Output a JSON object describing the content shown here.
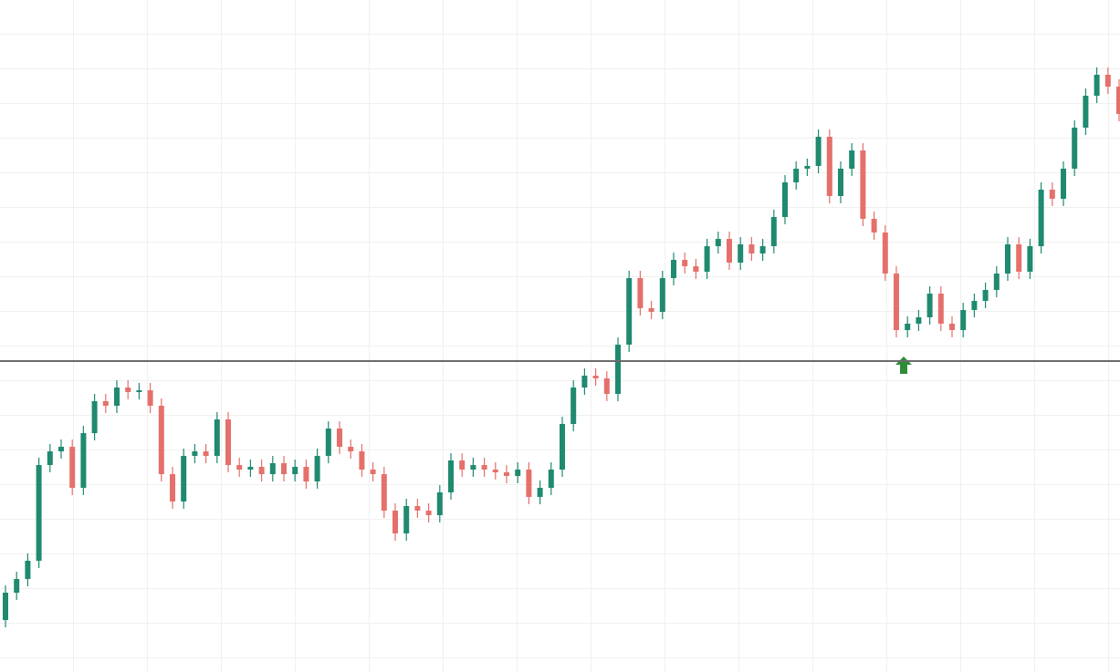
{
  "chart_data": {
    "type": "candlestick",
    "ylim": [
      0,
      737
    ],
    "up_color": "#1f8a70",
    "down_color": "#e5706b",
    "level": 341,
    "level_color": "#6b6b6b",
    "open": [
      57,
      87,
      102,
      122,
      227,
      242,
      247,
      202,
      262,
      297,
      292,
      312,
      307,
      309,
      292,
      217,
      187,
      237,
      242,
      237,
      277,
      227,
      222,
      225,
      217,
      229,
      217,
      225,
      209,
      237,
      267,
      247,
      242,
      222,
      217,
      177,
      152,
      182,
      177,
      172,
      197,
      232,
      222,
      227,
      222,
      219,
      215,
      222,
      192,
      202,
      222,
      272,
      312,
      325,
      322,
      305,
      359,
      432,
      399,
      395,
      432,
      452,
      445,
      439,
      467,
      475,
      449,
      469,
      459,
      467,
      499,
      537,
      552,
      555,
      587,
      522,
      552,
      572,
      497,
      482,
      437,
      375,
      382,
      389,
      415,
      382,
      375,
      397,
      407,
      419,
      437,
      469,
      439,
      467,
      529,
      519,
      552,
      597,
      632,
      655,
      642
    ],
    "high": [
      95,
      110,
      130,
      235,
      250,
      255,
      255,
      270,
      305,
      305,
      320,
      320,
      317,
      317,
      300,
      225,
      245,
      250,
      250,
      285,
      285,
      235,
      233,
      233,
      237,
      237,
      233,
      233,
      245,
      275,
      275,
      255,
      250,
      230,
      225,
      185,
      190,
      190,
      185,
      205,
      240,
      240,
      235,
      235,
      230,
      227,
      230,
      230,
      210,
      230,
      280,
      320,
      333,
      333,
      330,
      367,
      440,
      440,
      407,
      440,
      460,
      460,
      453,
      475,
      483,
      483,
      477,
      477,
      475,
      507,
      545,
      560,
      563,
      595,
      595,
      560,
      580,
      580,
      505,
      490,
      445,
      390,
      397,
      423,
      423,
      390,
      405,
      415,
      427,
      445,
      477,
      477,
      475,
      537,
      537,
      560,
      605,
      640,
      663,
      663,
      650
    ],
    "low": [
      49,
      79,
      94,
      114,
      219,
      234,
      194,
      194,
      254,
      284,
      284,
      299,
      299,
      284,
      209,
      179,
      179,
      229,
      229,
      229,
      219,
      214,
      214,
      209,
      209,
      209,
      209,
      201,
      201,
      229,
      239,
      234,
      214,
      209,
      169,
      144,
      144,
      169,
      164,
      164,
      189,
      214,
      214,
      214,
      211,
      207,
      207,
      184,
      184,
      194,
      214,
      264,
      304,
      314,
      297,
      297,
      351,
      391,
      387,
      387,
      424,
      437,
      431,
      431,
      459,
      441,
      441,
      451,
      451,
      459,
      491,
      529,
      544,
      547,
      514,
      514,
      544,
      489,
      474,
      429,
      367,
      367,
      374,
      381,
      374,
      367,
      367,
      389,
      399,
      411,
      429,
      431,
      431,
      459,
      511,
      511,
      544,
      589,
      624,
      634,
      604
    ],
    "close": [
      87,
      102,
      122,
      227,
      242,
      247,
      202,
      262,
      297,
      292,
      312,
      307,
      309,
      292,
      217,
      187,
      237,
      242,
      237,
      277,
      227,
      222,
      225,
      217,
      229,
      217,
      225,
      209,
      237,
      267,
      247,
      242,
      222,
      217,
      177,
      152,
      182,
      177,
      172,
      197,
      232,
      222,
      227,
      222,
      219,
      215,
      222,
      192,
      202,
      222,
      272,
      312,
      325,
      322,
      305,
      359,
      432,
      399,
      395,
      432,
      452,
      445,
      439,
      467,
      475,
      449,
      469,
      459,
      467,
      499,
      537,
      552,
      555,
      587,
      522,
      552,
      572,
      497,
      482,
      437,
      375,
      382,
      389,
      415,
      382,
      375,
      397,
      407,
      419,
      437,
      469,
      439,
      467,
      529,
      519,
      552,
      597,
      632,
      655,
      642,
      612
    ]
  }
}
